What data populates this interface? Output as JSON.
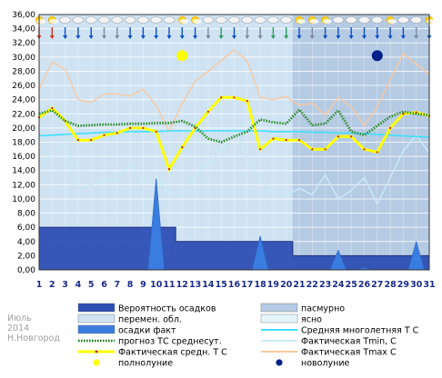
{
  "chart_data": {
    "type": "line",
    "x": [
      1,
      2,
      3,
      4,
      5,
      6,
      7,
      8,
      9,
      10,
      11,
      12,
      13,
      14,
      15,
      16,
      17,
      18,
      19,
      20,
      21,
      22,
      23,
      24,
      25,
      26,
      27,
      28,
      29,
      30,
      31
    ],
    "x_ticks": [
      "1",
      "2",
      "3",
      "4",
      "5",
      "6",
      "7",
      "8",
      "9",
      "10",
      "11",
      "12",
      "13",
      "14",
      "15",
      "16",
      "17",
      "18",
      "19",
      "20",
      "21",
      "22",
      "23",
      "24",
      "25",
      "26",
      "27",
      "28",
      "29",
      "30",
      "31"
    ],
    "ylim": [
      0,
      36
    ],
    "y_ticks": [
      "0,00",
      "2,00",
      "4,00",
      "6,00",
      "8,00",
      "10,00",
      "12,00",
      "14,00",
      "16,00",
      "18,00",
      "20,00",
      "22,00",
      "24,00",
      "26,00",
      "28,00",
      "30,00",
      "32,00",
      "34,00",
      "36,00"
    ],
    "grid": true,
    "background": {
      "regions": [
        {
          "name": "пасмурно",
          "color": "#b5cbe3"
        },
        {
          "name": "перемен. обл.",
          "color": "#cfe3f3"
        },
        {
          "name": "ясно",
          "color": "#e4f6fb"
        }
      ],
      "sky_by_day": [
        1,
        1,
        1,
        1,
        1,
        1,
        1,
        1,
        1,
        1,
        1,
        1,
        1,
        1,
        1,
        1,
        1,
        1,
        1,
        1,
        0,
        0,
        0,
        0,
        0,
        0,
        0,
        0,
        0,
        0,
        0
      ]
    },
    "series": [
      {
        "name": "Вероятность осадков",
        "role": "precip_prob",
        "color": "#2e4fb4",
        "values": [
          6,
          6,
          6,
          6,
          6,
          6,
          6,
          6,
          6,
          6,
          6,
          4,
          4,
          4,
          4,
          4,
          4,
          4,
          4,
          4,
          2,
          2,
          2,
          2,
          2,
          2,
          2,
          2,
          2,
          2,
          2
        ]
      },
      {
        "name": "осадки факт",
        "role": "precip_fact",
        "color": "#3a7de0",
        "values": [
          0,
          0,
          0,
          0,
          0,
          0,
          0,
          0,
          0,
          13,
          0,
          0,
          0,
          0,
          0,
          0,
          0,
          4.8,
          0,
          0,
          0,
          0,
          0,
          2.8,
          0,
          0.3,
          0,
          0,
          0,
          4,
          0
        ]
      },
      {
        "name": "Средняя многолетняя Т С",
        "role": "normal_t",
        "color": "#3ee0ff",
        "values": [
          18.9,
          19.0,
          19.1,
          19.2,
          19.3,
          19.4,
          19.4,
          19.5,
          19.5,
          19.5,
          19.6,
          19.6,
          19.6,
          19.6,
          19.6,
          19.6,
          19.6,
          19.6,
          19.5,
          19.5,
          19.5,
          19.4,
          19.4,
          19.3,
          19.3,
          19.2,
          19.1,
          19.0,
          18.9,
          18.8,
          18.7
        ]
      },
      {
        "name": "прогноз ТС среднесут.",
        "role": "forecast_t",
        "color": "#157a15",
        "values": [
          22.0,
          22.5,
          21.0,
          20.3,
          20.4,
          20.5,
          20.5,
          20.6,
          20.6,
          20.7,
          20.7,
          21.0,
          20.2,
          18.5,
          18.0,
          18.8,
          19.5,
          21.2,
          20.8,
          20.6,
          22.6,
          20.4,
          20.6,
          22.5,
          19.5,
          19.0,
          20.3,
          21.6,
          22.3,
          22.0,
          21.8
        ]
      },
      {
        "name": "Фактическая средн. Т С",
        "role": "actual_t",
        "color": "#ffff00",
        "values": [
          21.5,
          22.8,
          21.0,
          18.3,
          18.3,
          19.0,
          19.3,
          20.0,
          20.0,
          19.5,
          14.2,
          17.3,
          20.0,
          22.3,
          24.3,
          24.3,
          23.8,
          17.0,
          18.5,
          18.3,
          18.3,
          17.0,
          17.0,
          18.8,
          18.8,
          17.0,
          16.6,
          20.0,
          22.0,
          22.2,
          21.7
        ]
      },
      {
        "name": "Фактическая Tmin, C",
        "role": "tmin",
        "color": "#c9ecf6",
        "values": [
          14.5,
          16.5,
          17.8,
          11.5,
          12.0,
          12.5,
          12.8,
          15.0,
          12.5,
          13.0,
          11.0,
          10.3,
          13.3,
          15.0,
          16.8,
          19.8,
          16.0,
          12.5,
          10.8,
          10.5,
          11.5,
          10.6,
          13.4,
          10.0,
          11.2,
          13.0,
          9.3,
          13.0,
          16.8,
          19.0,
          16.5
        ]
      },
      {
        "name": "Фактическая Tmax C",
        "role": "tmax",
        "color": "#f9c8a0",
        "values": [
          25.5,
          29.3,
          28.3,
          24.0,
          23.6,
          24.8,
          24.8,
          24.5,
          25.5,
          23.2,
          19.5,
          23.5,
          26.6,
          28.0,
          29.5,
          31.0,
          29.5,
          24.3,
          24.0,
          24.4,
          23.2,
          23.5,
          21.8,
          24.3,
          23.0,
          20.3,
          23.0,
          26.8,
          30.5,
          29.0,
          27.5
        ]
      }
    ],
    "moon": [
      {
        "name": "полнолуние",
        "day": 12,
        "color": "#ffff00"
      },
      {
        "name": "новолуние",
        "day": 27,
        "color": "#001f8a"
      }
    ],
    "wind_colors_by_day": [
      "#d4301f",
      "#d4301f",
      "#1050c8",
      "#1050c8",
      "#1050c8",
      "#7c8aa0",
      "#7c8aa0",
      "#1050c8",
      "#1050c8",
      "#1050c8",
      "#1050c8",
      "#1050c8",
      "#1050c8",
      "#7c8aa0",
      "#2ba060",
      "#1050c8",
      "#7c8aa0",
      "#7c8aa0",
      "#2ba060",
      "#2ba060",
      "#1050c8",
      "#7c8aa0",
      "#1050c8",
      "#1050c8",
      "#1050c8",
      "#1050c8",
      "#1050c8",
      "#1050c8",
      "#1050c8",
      "#7c8aa0",
      "#1050c8"
    ],
    "weather_icon_by_day": [
      "sun",
      "sun",
      "cloud",
      "cloud",
      "cloud",
      "cloud",
      "cloud",
      "cloud",
      "cloud",
      "cloud",
      "cloud",
      "sun",
      "sun",
      "cloud",
      "cloud",
      "cloud",
      "cloud",
      "cloud",
      "cloud",
      "cloud",
      "sun",
      "sun",
      "sun",
      "cloud",
      "cloud",
      "cloud",
      "cloud",
      "sun",
      "cloud",
      "cloud",
      "sun"
    ],
    "legend": [
      {
        "label": "Вероятность осадков",
        "swatch": "bar",
        "color": "#2e4fb4"
      },
      {
        "label": "пасмурно",
        "swatch": "bar",
        "color": "#b5cbe3"
      },
      {
        "label": "перемен. обл.",
        "swatch": "bar",
        "color": "#cfe3f3"
      },
      {
        "label": "ясно",
        "swatch": "bar",
        "color": "#e4f6fb"
      },
      {
        "label": "осадки факт",
        "swatch": "bar",
        "color": "#3a7de0"
      },
      {
        "label": "Средняя многолетняя Т С",
        "swatch": "line",
        "color": "#3ee0ff"
      },
      {
        "label": "прогноз ТС среднесут.",
        "swatch": "dotted",
        "color": "#157a15"
      },
      {
        "label": "Фактическая Tmin, C",
        "swatch": "line",
        "color": "#c9ecf6"
      },
      {
        "label": "Фактическая средн. Т С",
        "swatch": "yellowline",
        "color": "#ffff00"
      },
      {
        "label": "Фактическая Tmax C",
        "swatch": "line",
        "color": "#f9c8a0"
      },
      {
        "label": "полнолуние",
        "swatch": "dot",
        "color": "#ffff00"
      },
      {
        "label": "новолуние",
        "swatch": "dot",
        "color": "#001f8a"
      }
    ],
    "watermark": [
      "Июль",
      "2014",
      "Н.Новгород"
    ]
  }
}
